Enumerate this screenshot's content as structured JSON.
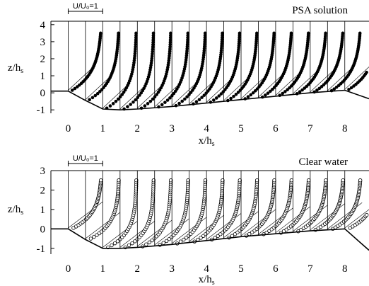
{
  "chart_data": [
    {
      "type": "scatter",
      "title": "PSA solution",
      "xlabel": "x/h",
      "xlabel_sub": "s",
      "ylabel": "z/h",
      "ylabel_sub": "s",
      "xlim": [
        -0.5,
        8.7
      ],
      "ylim": [
        -1.2,
        4.2
      ],
      "xticks": [
        "0",
        "1",
        "2",
        "3",
        "4",
        "5",
        "6",
        "7",
        "8"
      ],
      "yticks": [
        "-1",
        "0",
        "1",
        "2",
        "3",
        "4"
      ],
      "scale_bar_label": "U/U₀=1",
      "scale_bar_units": 1,
      "marker": "filled",
      "profile_stations_x": [
        0,
        0.5,
        1,
        1.5,
        2,
        2.5,
        3,
        3.5,
        4,
        4.5,
        5,
        5.5,
        6,
        6.5,
        7,
        7.5,
        8
      ],
      "velocity_profile_model": "u/U0 = 1 - d * exp(-k * (z - z_bed))",
      "velocity_profile_params": {
        "d": 0.92,
        "k": 0.9,
        "top_z": 3.5
      },
      "bed_profile": {
        "x": [
          -0.5,
          0.0,
          0.5,
          1.0,
          1.5,
          2.0,
          3.0,
          4.0,
          5.0,
          6.0,
          7.0,
          8.0,
          8.7
        ],
        "z": [
          0.1,
          0.1,
          -0.45,
          -0.95,
          -1.0,
          -0.95,
          -0.8,
          -0.6,
          -0.4,
          -0.2,
          0.0,
          0.15,
          -0.35
        ]
      }
    },
    {
      "type": "scatter",
      "title": "Clear water",
      "xlabel": "x/h",
      "xlabel_sub": "s",
      "ylabel": "z/h",
      "ylabel_sub": "s",
      "xlim": [
        -0.5,
        8.7
      ],
      "ylim": [
        -1.3,
        3.0
      ],
      "xticks": [
        "0",
        "1",
        "2",
        "3",
        "4",
        "5",
        "6",
        "7",
        "8"
      ],
      "yticks": [
        "-1",
        "0",
        "1",
        "2",
        "3"
      ],
      "scale_bar_label": "U/U₀=1",
      "scale_bar_units": 1,
      "marker": "open",
      "profile_stations_x": [
        0,
        0.5,
        1,
        1.5,
        2,
        2.5,
        3,
        3.5,
        4,
        4.5,
        5,
        5.5,
        6,
        6.5,
        7,
        7.5,
        8
      ],
      "velocity_profile_model": "u/U0 = 1 - d * exp(-k * (z - z_bed))",
      "velocity_profile_params": {
        "d": 0.9,
        "k": 1.3,
        "top_z": 2.5
      },
      "bed_profile": {
        "x": [
          -0.5,
          0.0,
          0.5,
          1.0,
          1.5,
          2.0,
          3.0,
          4.0,
          5.0,
          6.0,
          7.0,
          8.0,
          8.7
        ],
        "z": [
          0.0,
          0.0,
          -0.55,
          -1.0,
          -1.0,
          -0.95,
          -0.8,
          -0.6,
          -0.4,
          -0.25,
          -0.1,
          0.0,
          -1.1
        ]
      }
    }
  ]
}
